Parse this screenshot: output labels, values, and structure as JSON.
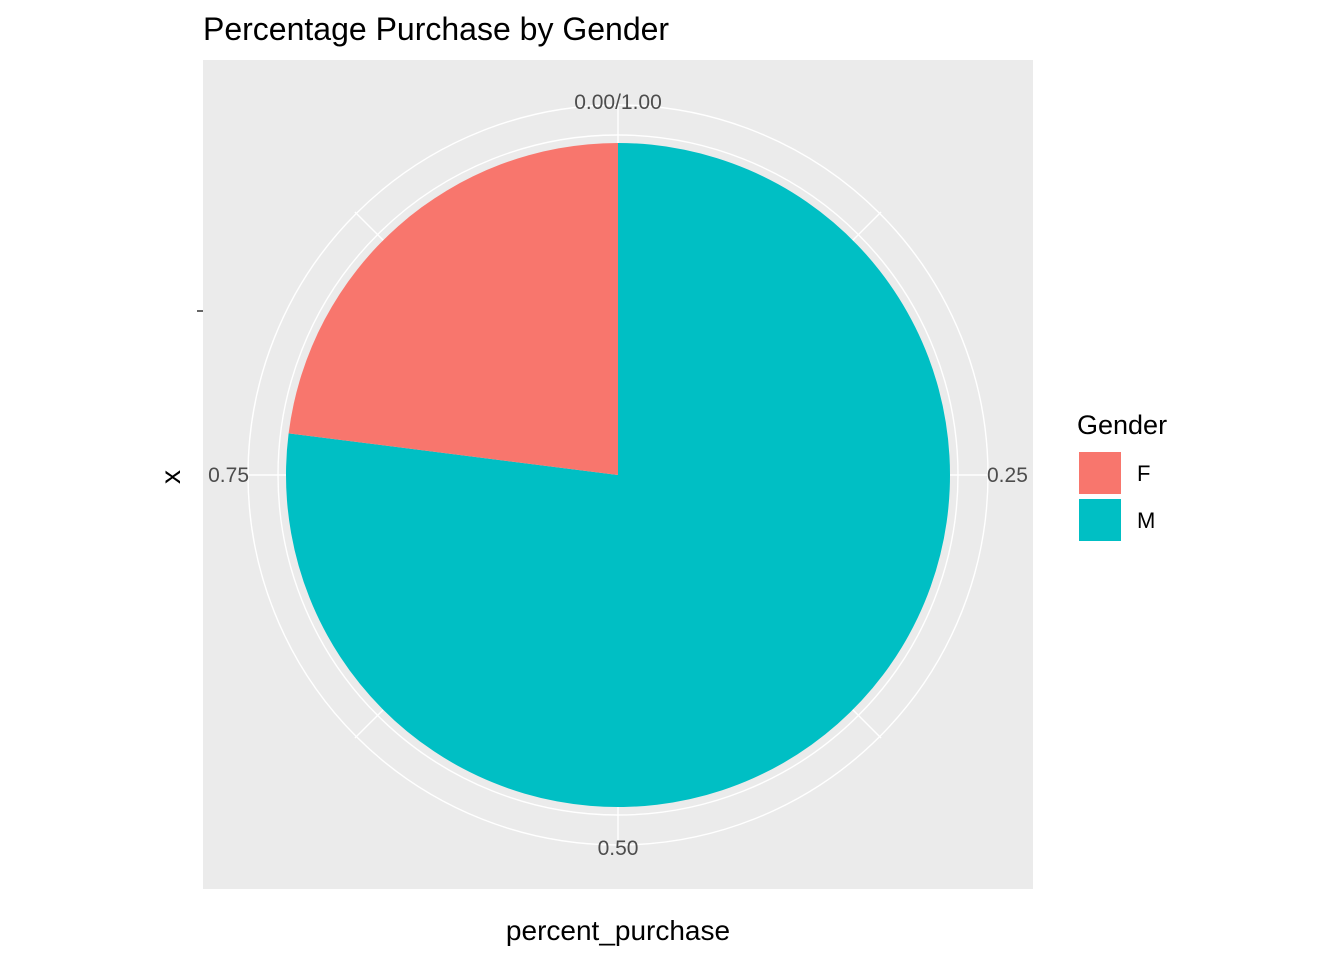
{
  "chart_data": {
    "type": "pie",
    "title": "Percentage Purchase by Gender",
    "xlabel": "percent_purchase",
    "ylabel": "x",
    "theta_ticks": [
      {
        "value": 0,
        "label": "0.00/1.00"
      },
      {
        "value": 0.25,
        "label": "0.25"
      },
      {
        "value": 0.5,
        "label": "0.50"
      },
      {
        "value": 0.75,
        "label": "0.75"
      }
    ],
    "slices": [
      {
        "label": "F",
        "value": 0.23,
        "color": "#F8766D"
      },
      {
        "label": "M",
        "value": 0.77,
        "color": "#00BFC4"
      }
    ],
    "legend": {
      "title": "Gender",
      "position": "right"
    },
    "panel_background": "#EBEBEB",
    "grid": true,
    "grid_color": "#FFFFFF"
  }
}
